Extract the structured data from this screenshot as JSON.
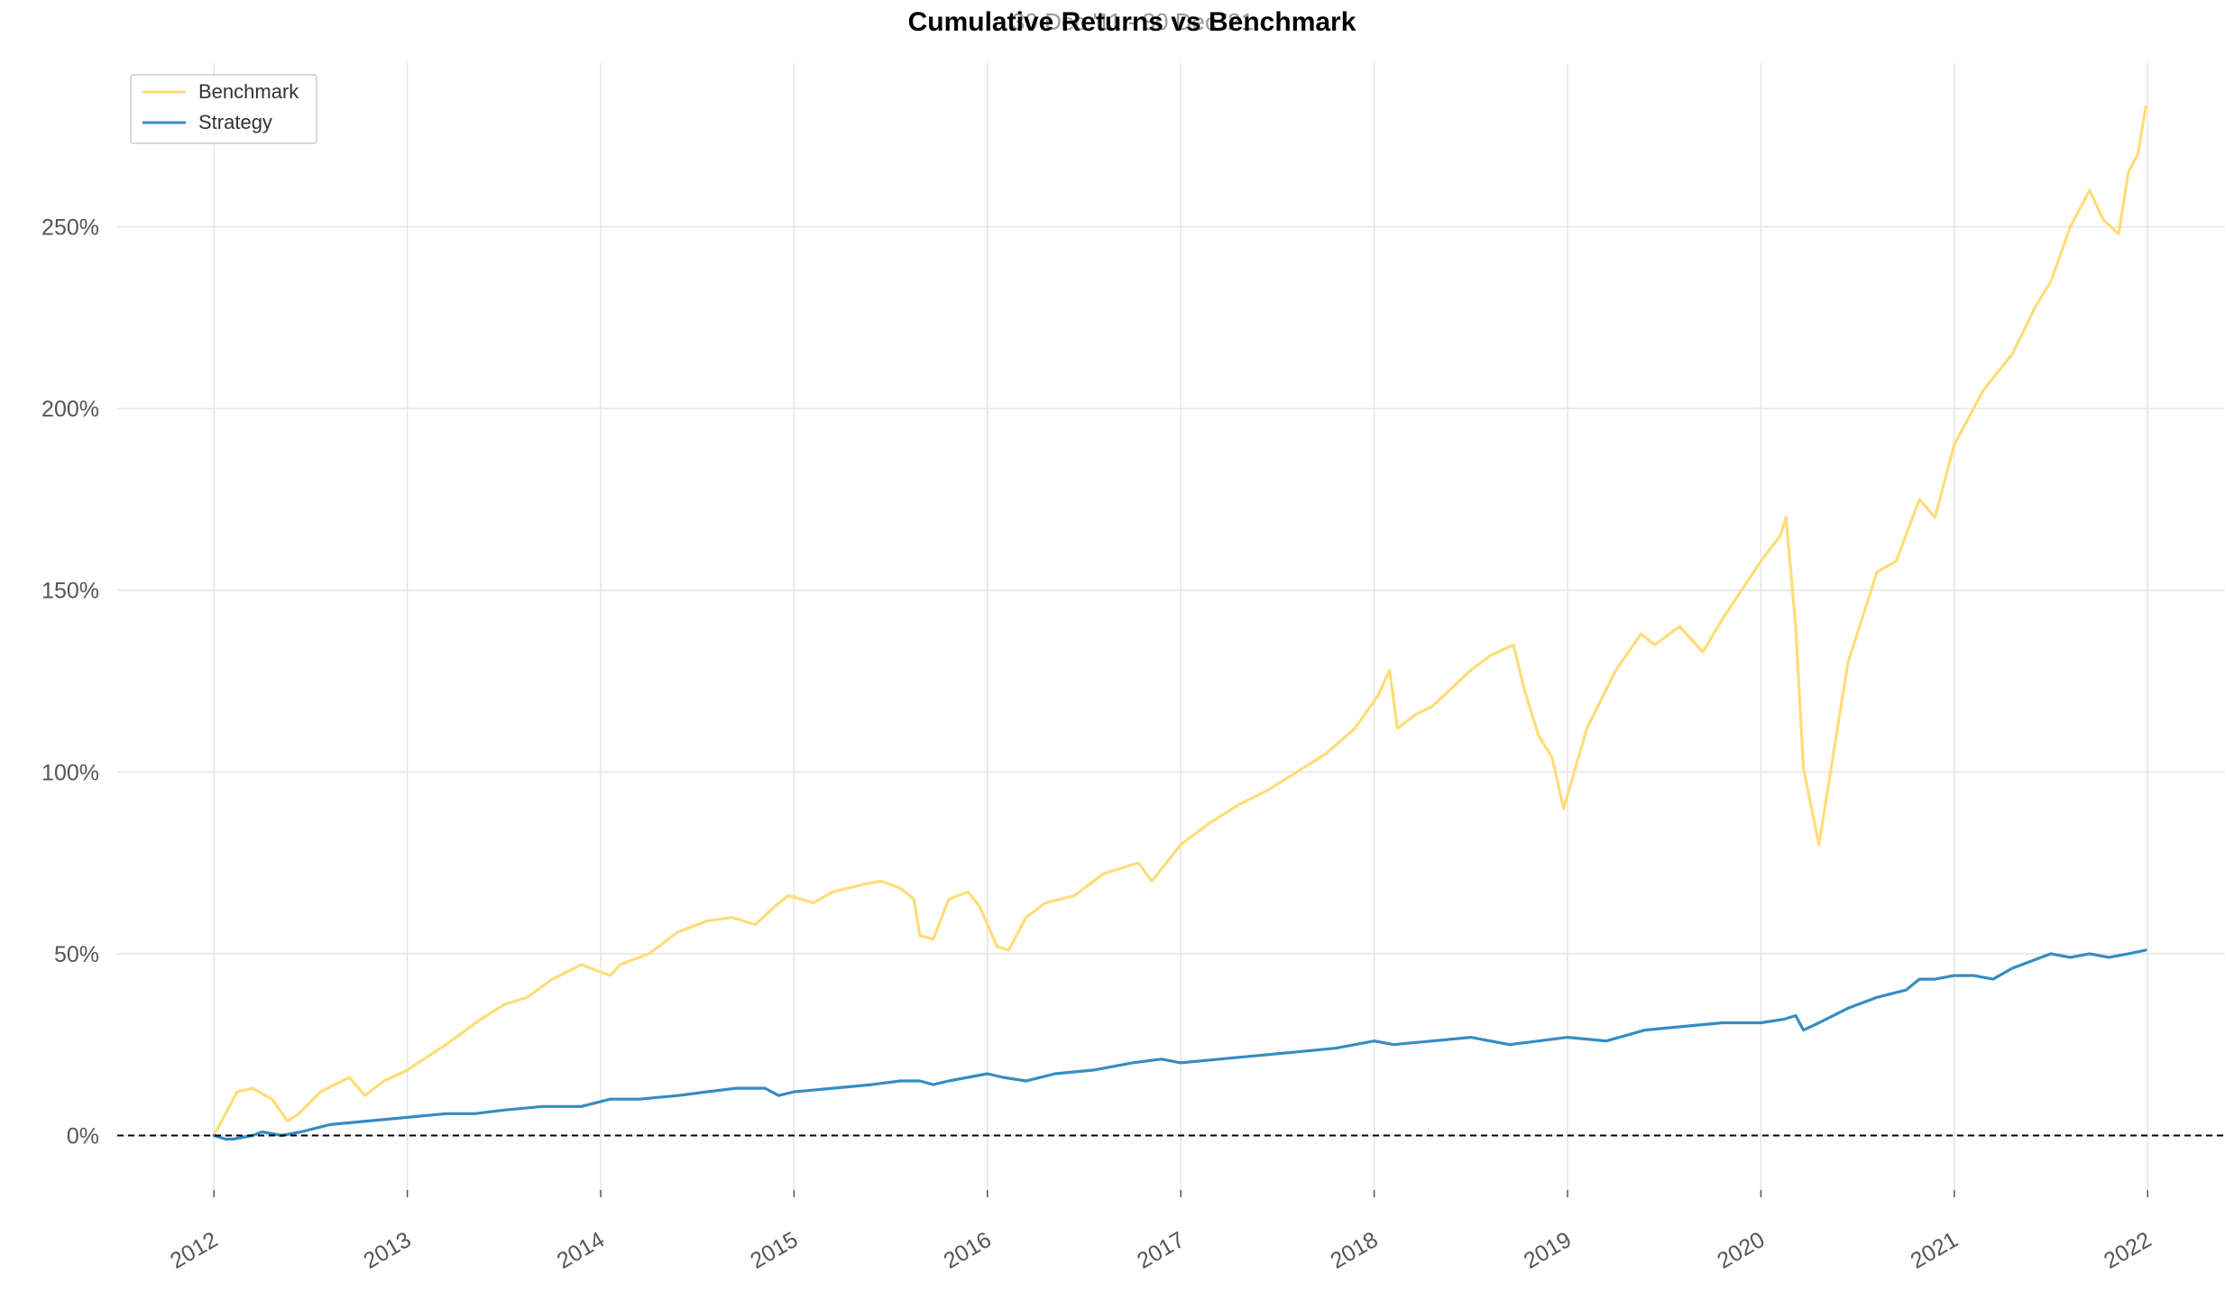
{
  "chart_data": {
    "type": "line",
    "title": "Cumulative Returns vs Benchmark",
    "subtitle": "30 Dec '11 - 30 Dec '21",
    "xlabel": "",
    "ylabel": "",
    "x_ticks": [
      "2012",
      "2013",
      "2014",
      "2015",
      "2016",
      "2017",
      "2018",
      "2019",
      "2020",
      "2021",
      "2022"
    ],
    "y_ticks": [
      "0%",
      "50%",
      "100%",
      "150%",
      "200%",
      "250%"
    ],
    "y_tick_values": [
      0,
      50,
      100,
      150,
      200,
      250
    ],
    "xlim": [
      2011.5,
      2022.4
    ],
    "ylim": [
      -15,
      295
    ],
    "grid": true,
    "legend_position": "top-left",
    "baseline": 0,
    "colors": {
      "benchmark": "#fedd78",
      "strategy": "#348dc1",
      "baseline": "#000000"
    },
    "series": [
      {
        "name": "Benchmark",
        "color": "#fedd78",
        "x": [
          2012.0,
          2012.12,
          2012.2,
          2012.3,
          2012.38,
          2012.44,
          2012.55,
          2012.7,
          2012.78,
          2012.88,
          2013.0,
          2013.2,
          2013.38,
          2013.5,
          2013.62,
          2013.75,
          2013.9,
          2014.05,
          2014.1,
          2014.25,
          2014.4,
          2014.55,
          2014.68,
          2014.8,
          2014.9,
          2014.97,
          2015.1,
          2015.2,
          2015.35,
          2015.45,
          2015.55,
          2015.62,
          2015.65,
          2015.72,
          2015.8,
          2015.9,
          2015.96,
          2016.05,
          2016.11,
          2016.2,
          2016.3,
          2016.45,
          2016.6,
          2016.78,
          2016.85,
          2017.0,
          2017.15,
          2017.3,
          2017.45,
          2017.6,
          2017.75,
          2017.9,
          2018.02,
          2018.08,
          2018.12,
          2018.22,
          2018.3,
          2018.5,
          2018.6,
          2018.72,
          2018.78,
          2018.85,
          2018.92,
          2018.98,
          2019.1,
          2019.25,
          2019.38,
          2019.45,
          2019.58,
          2019.7,
          2019.8,
          2019.9,
          2020.0,
          2020.1,
          2020.13,
          2020.18,
          2020.22,
          2020.3,
          2020.45,
          2020.6,
          2020.7,
          2020.82,
          2020.9,
          2021.0,
          2021.15,
          2021.3,
          2021.42,
          2021.5,
          2021.6,
          2021.7,
          2021.77,
          2021.85,
          2021.9,
          2021.95,
          2021.99
        ],
        "values": [
          0,
          12,
          13,
          10,
          4,
          6,
          12,
          16,
          11,
          15,
          18,
          25,
          32,
          36,
          38,
          43,
          47,
          44,
          47,
          50,
          56,
          59,
          60,
          58,
          63,
          66,
          64,
          67,
          69,
          70,
          68,
          65,
          55,
          54,
          65,
          67,
          63,
          52,
          51,
          60,
          64,
          66,
          72,
          75,
          70,
          80,
          86,
          91,
          95,
          100,
          105,
          112,
          121,
          128,
          112,
          116,
          118,
          128,
          132,
          135,
          122,
          110,
          104,
          90,
          112,
          128,
          138,
          135,
          140,
          133,
          142,
          150,
          158,
          165,
          170,
          140,
          101,
          80,
          130,
          155,
          158,
          175,
          170,
          190,
          205,
          215,
          228,
          235,
          250,
          260,
          252,
          248,
          265,
          270,
          283
        ]
      },
      {
        "name": "Strategy",
        "color": "#348dc1",
        "x": [
          2012.0,
          2012.06,
          2012.1,
          2012.2,
          2012.25,
          2012.35,
          2012.45,
          2012.6,
          2012.8,
          2013.0,
          2013.2,
          2013.35,
          2013.5,
          2013.7,
          2013.9,
          2014.05,
          2014.2,
          2014.4,
          2014.55,
          2014.7,
          2014.85,
          2014.92,
          2015.0,
          2015.2,
          2015.4,
          2015.55,
          2015.65,
          2015.72,
          2015.8,
          2015.9,
          2016.0,
          2016.08,
          2016.2,
          2016.35,
          2016.55,
          2016.75,
          2016.9,
          2017.0,
          2017.2,
          2017.4,
          2017.6,
          2017.8,
          2018.0,
          2018.1,
          2018.3,
          2018.5,
          2018.7,
          2018.85,
          2019.0,
          2019.2,
          2019.4,
          2019.6,
          2019.8,
          2020.0,
          2020.12,
          2020.18,
          2020.22,
          2020.3,
          2020.45,
          2020.6,
          2020.75,
          2020.82,
          2020.9,
          2021.0,
          2021.1,
          2021.2,
          2021.3,
          2021.45,
          2021.5,
          2021.6,
          2021.7,
          2021.8,
          2021.9,
          2021.99
        ],
        "values": [
          0,
          -1,
          -1,
          0,
          1,
          0,
          1,
          3,
          4,
          5,
          6,
          6,
          7,
          8,
          8,
          10,
          10,
          11,
          12,
          13,
          13,
          11,
          12,
          13,
          14,
          15,
          15,
          14,
          15,
          16,
          17,
          16,
          15,
          17,
          18,
          20,
          21,
          20,
          21,
          22,
          23,
          24,
          26,
          25,
          26,
          27,
          25,
          26,
          27,
          26,
          29,
          30,
          31,
          31,
          32,
          33,
          29,
          31,
          35,
          38,
          40,
          43,
          43,
          44,
          44,
          43,
          46,
          49,
          50,
          49,
          50,
          49,
          50,
          51
        ]
      }
    ]
  }
}
